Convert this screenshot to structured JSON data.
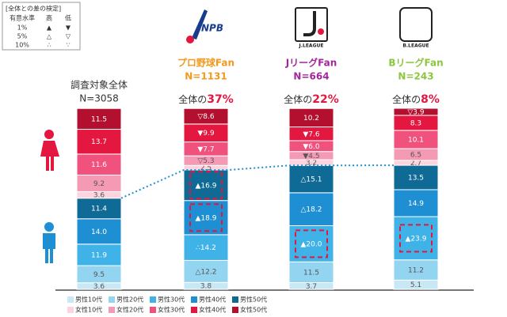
{
  "chart_data": {
    "type": "bar",
    "stacked": true,
    "significance_key": {
      "title": "[全体との差の検定]",
      "header": [
        "有意水準",
        "高",
        "低"
      ],
      "rows": [
        [
          "1%",
          "▲",
          "▼"
        ],
        [
          "5%",
          "△",
          "▽"
        ],
        [
          "10%",
          "∴",
          "∵"
        ]
      ]
    },
    "groups": [
      {
        "logo": null,
        "name": "調査対象全体",
        "n": "N=3058",
        "share_prefix": null,
        "share": null,
        "color": "#333333"
      },
      {
        "logo": "NPB",
        "name": "プロ野球Fan",
        "n": "N=1131",
        "share_prefix": "全体の",
        "share": "37%",
        "color": "#f39a1e"
      },
      {
        "logo": "J.LEAGUE",
        "name": "JリーグFan",
        "n": "N=664",
        "share_prefix": "全体の",
        "share": "22%",
        "color": "#a0289a"
      },
      {
        "logo": "B.LEAGUE",
        "name": "BリーグFan",
        "n": "N=243",
        "share_prefix": "全体の",
        "share": "8%",
        "color": "#8cc63f"
      }
    ],
    "series": [
      {
        "name": "男性10代",
        "color": "#c9e8f6",
        "values": [
          3.6,
          3.8,
          3.7,
          5.1
        ],
        "value_labels": [
          "3.6",
          "3.8",
          "3.7",
          "5.1"
        ]
      },
      {
        "name": "男性20代",
        "color": "#93d4f1",
        "values": [
          9.5,
          12.2,
          11.5,
          11.2
        ],
        "value_labels": [
          "9.5",
          "△12.2",
          "11.5",
          "11.2"
        ]
      },
      {
        "name": "男性30代",
        "color": "#3fb2e7",
        "values": [
          11.9,
          14.2,
          20.0,
          23.9
        ],
        "value_labels": [
          "11.9",
          "∴14.2",
          "▲20.0",
          "▲23.9"
        ]
      },
      {
        "name": "男性40代",
        "color": "#1d8fd2",
        "values": [
          14.0,
          18.9,
          18.2,
          14.9
        ],
        "value_labels": [
          "14.0",
          "▲18.9",
          "△18.2",
          "14.9"
        ]
      },
      {
        "name": "男性50代",
        "color": "#106a96",
        "values": [
          11.4,
          16.9,
          15.1,
          13.5
        ],
        "value_labels": [
          "11.4",
          "▲16.9",
          "△15.1",
          "13.5"
        ]
      },
      {
        "name": "女性10代",
        "color": "#fcd3de",
        "values": [
          3.6,
          2.5,
          3.2,
          2.7
        ],
        "value_labels": [
          "3.6",
          "2.5",
          "3.2",
          "2.7"
        ]
      },
      {
        "name": "女性20代",
        "color": "#f59ab5",
        "values": [
          9.2,
          5.3,
          4.5,
          6.5
        ],
        "value_labels": [
          "9.2",
          "▽5.3",
          "▼4.5",
          "6.5"
        ]
      },
      {
        "name": "女性30代",
        "color": "#f0517d",
        "values": [
          11.6,
          7.7,
          6.0,
          10.1
        ],
        "value_labels": [
          "11.6",
          "▼7.7",
          "▼6.0",
          "10.1"
        ]
      },
      {
        "name": "女性40代",
        "color": "#e3173f",
        "values": [
          13.7,
          9.9,
          7.6,
          8.3
        ],
        "value_labels": [
          "13.7",
          "▼9.9",
          "▼7.6",
          "8.3"
        ]
      },
      {
        "name": "女性50代",
        "color": "#b3102f",
        "values": [
          11.5,
          8.6,
          10.2,
          3.9
        ],
        "value_labels": [
          "11.5",
          "▽8.6",
          "10.2",
          "▽3.9"
        ]
      }
    ]
  }
}
